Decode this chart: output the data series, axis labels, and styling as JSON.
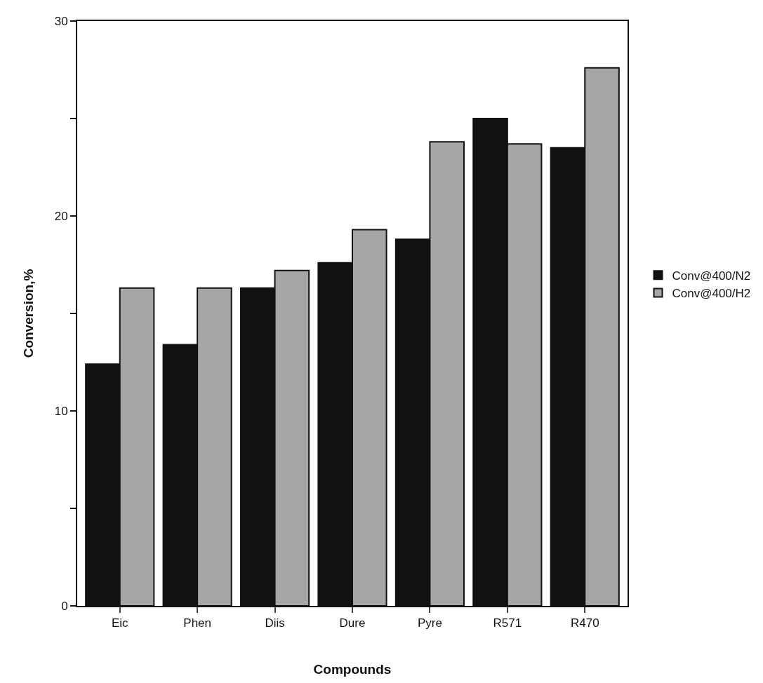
{
  "chart_data": {
    "type": "bar",
    "xlabel": "Compounds",
    "ylabel": "Conversion,%",
    "categories": [
      "Eic",
      "Phen",
      "Diis",
      "Dure",
      "Pyre",
      "R571",
      "R470"
    ],
    "series": [
      {
        "name": "Conv@400/N2",
        "color": "#111111",
        "values": [
          12.4,
          13.4,
          16.3,
          17.6,
          18.8,
          25.0,
          23.5
        ]
      },
      {
        "name": "Conv@400/H2",
        "color": "#a6a6a6",
        "values": [
          16.3,
          16.3,
          17.2,
          19.3,
          23.8,
          23.7,
          27.6
        ]
      }
    ],
    "ylim": [
      0,
      30
    ],
    "yticks": [
      0,
      {
        "value": 5,
        "label": null
      },
      10,
      {
        "value": 15,
        "label": null
      },
      20,
      {
        "value": 25,
        "label": null
      },
      30
    ],
    "legend": "right"
  }
}
